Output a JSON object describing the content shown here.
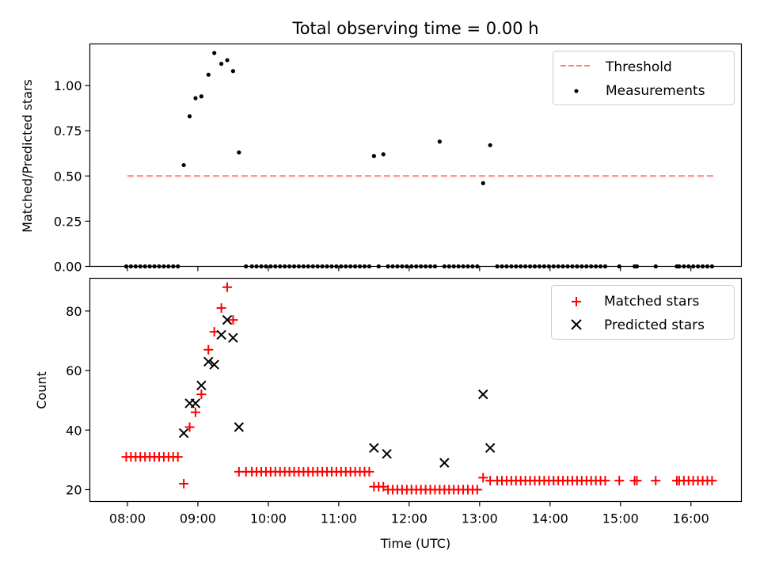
{
  "chart_data": [
    {
      "type": "scatter",
      "title": "Total observing time = 0.00 h",
      "xlabel": "",
      "ylabel": "Matched/Predicted stars",
      "ylim": [
        0,
        1.23
      ],
      "yticks": [
        "0.00",
        "0.25",
        "0.50",
        "0.75",
        "1.00"
      ],
      "grid": false,
      "legend_position": "upper right",
      "threshold": {
        "name": "Threshold",
        "value": 0.5,
        "x_start": "08:00",
        "x_end": "16:20",
        "color": "#ff7f7f",
        "style": "dashed"
      },
      "series": [
        {
          "name": "Measurements",
          "color": "#000000",
          "marker": "dot",
          "x": [
            "07:59",
            "08:03",
            "08:07",
            "08:11",
            "08:15",
            "08:19",
            "08:23",
            "08:27",
            "08:31",
            "08:35",
            "08:39",
            "08:43",
            "08:48",
            "08:53",
            "08:58",
            "09:03",
            "09:09",
            "09:14",
            "09:20",
            "09:25",
            "09:30",
            "09:35",
            "09:41",
            "09:46",
            "09:50",
            "09:54",
            "09:58",
            "10:02",
            "10:06",
            "10:10",
            "10:14",
            "10:18",
            "10:22",
            "10:26",
            "10:30",
            "10:34",
            "10:38",
            "10:42",
            "10:46",
            "10:50",
            "10:54",
            "10:58",
            "11:02",
            "11:06",
            "11:10",
            "11:14",
            "11:18",
            "11:22",
            "11:26",
            "11:30",
            "11:34",
            "11:38",
            "11:42",
            "11:46",
            "11:50",
            "11:54",
            "11:58",
            "12:02",
            "12:06",
            "12:10",
            "12:14",
            "12:18",
            "12:22",
            "12:26",
            "12:30",
            "12:34",
            "12:38",
            "12:42",
            "12:46",
            "12:50",
            "12:54",
            "12:58",
            "13:03",
            "13:09",
            "13:15",
            "13:19",
            "13:23",
            "13:27",
            "13:31",
            "13:35",
            "13:39",
            "13:43",
            "13:47",
            "13:51",
            "13:55",
            "13:59",
            "14:03",
            "14:07",
            "14:11",
            "14:15",
            "14:19",
            "14:23",
            "14:27",
            "14:31",
            "14:35",
            "14:39",
            "14:43",
            "14:47",
            "14:59",
            "15:12",
            "15:14",
            "15:30",
            "15:48",
            "15:50",
            "15:54",
            "15:58",
            "16:02",
            "16:06",
            "16:10",
            "16:14",
            "16:18"
          ],
          "y": [
            0,
            0,
            0,
            0,
            0,
            0,
            0,
            0,
            0,
            0,
            0,
            0,
            0.56,
            0.83,
            0.93,
            0.94,
            1.06,
            1.18,
            1.12,
            1.14,
            1.08,
            0.63,
            0,
            0,
            0,
            0,
            0,
            0,
            0,
            0,
            0,
            0,
            0,
            0,
            0,
            0,
            0,
            0,
            0,
            0,
            0,
            0,
            0,
            0,
            0,
            0,
            0,
            0,
            0,
            0.61,
            0,
            0.62,
            0,
            0,
            0,
            0,
            0,
            0,
            0,
            0,
            0,
            0,
            0,
            0.69,
            0,
            0,
            0,
            0,
            0,
            0,
            0,
            0,
            0.46,
            0.67,
            0,
            0,
            0,
            0,
            0,
            0,
            0,
            0,
            0,
            0,
            0,
            0,
            0,
            0,
            0,
            0,
            0,
            0,
            0,
            0,
            0,
            0,
            0,
            0,
            0,
            0,
            0,
            0,
            0,
            0,
            0,
            0,
            0,
            0,
            0,
            0,
            0
          ]
        }
      ]
    },
    {
      "type": "scatter",
      "title": "",
      "xlabel": "Time (UTC)",
      "ylabel": "Count",
      "xlim": [
        "07:28",
        "16:43"
      ],
      "ylim": [
        16,
        91
      ],
      "xticks": [
        "08:00",
        "09:00",
        "10:00",
        "11:00",
        "12:00",
        "13:00",
        "14:00",
        "15:00",
        "16:00"
      ],
      "yticks": [
        "20",
        "40",
        "60",
        "80"
      ],
      "grid": false,
      "legend_position": "upper right",
      "series": [
        {
          "name": "Matched stars",
          "color": "#ff0000",
          "marker": "plus",
          "x": [
            "07:59",
            "08:03",
            "08:07",
            "08:11",
            "08:15",
            "08:19",
            "08:23",
            "08:27",
            "08:31",
            "08:35",
            "08:39",
            "08:43",
            "08:48",
            "08:53",
            "08:58",
            "09:03",
            "09:09",
            "09:14",
            "09:20",
            "09:25",
            "09:30",
            "09:35",
            "09:41",
            "09:46",
            "09:50",
            "09:54",
            "09:58",
            "10:02",
            "10:06",
            "10:10",
            "10:14",
            "10:18",
            "10:22",
            "10:26",
            "10:30",
            "10:34",
            "10:38",
            "10:42",
            "10:46",
            "10:50",
            "10:54",
            "10:58",
            "11:02",
            "11:06",
            "11:10",
            "11:14",
            "11:18",
            "11:22",
            "11:26",
            "11:30",
            "11:34",
            "11:38",
            "11:42",
            "11:46",
            "11:50",
            "11:54",
            "11:58",
            "12:02",
            "12:06",
            "12:10",
            "12:14",
            "12:18",
            "12:22",
            "12:26",
            "12:30",
            "12:34",
            "12:38",
            "12:42",
            "12:46",
            "12:50",
            "12:54",
            "12:58",
            "13:03",
            "13:09",
            "13:15",
            "13:19",
            "13:23",
            "13:27",
            "13:31",
            "13:35",
            "13:39",
            "13:43",
            "13:47",
            "13:51",
            "13:55",
            "13:59",
            "14:03",
            "14:07",
            "14:11",
            "14:15",
            "14:19",
            "14:23",
            "14:27",
            "14:31",
            "14:35",
            "14:39",
            "14:43",
            "14:47",
            "14:59",
            "15:12",
            "15:14",
            "15:30",
            "15:48",
            "15:50",
            "15:54",
            "15:58",
            "16:02",
            "16:06",
            "16:10",
            "16:14",
            "16:18"
          ],
          "y": [
            31,
            31,
            31,
            31,
            31,
            31,
            31,
            31,
            31,
            31,
            31,
            31,
            22,
            41,
            46,
            52,
            67,
            73,
            81,
            88,
            77,
            26,
            26,
            26,
            26,
            26,
            26,
            26,
            26,
            26,
            26,
            26,
            26,
            26,
            26,
            26,
            26,
            26,
            26,
            26,
            26,
            26,
            26,
            26,
            26,
            26,
            26,
            26,
            26,
            21,
            21,
            21,
            20,
            20,
            20,
            20,
            20,
            20,
            20,
            20,
            20,
            20,
            20,
            20,
            20,
            20,
            20,
            20,
            20,
            20,
            20,
            20,
            24,
            23,
            23,
            23,
            23,
            23,
            23,
            23,
            23,
            23,
            23,
            23,
            23,
            23,
            23,
            23,
            23,
            23,
            23,
            23,
            23,
            23,
            23,
            23,
            23,
            23,
            23,
            23,
            23,
            23,
            23,
            23,
            23,
            23,
            23,
            23,
            23,
            23,
            23
          ]
        },
        {
          "name": "Predicted stars",
          "color": "#000000",
          "marker": "x",
          "x": [
            "08:48",
            "08:53",
            "08:58",
            "09:03",
            "09:09",
            "09:14",
            "09:20",
            "09:25",
            "09:30",
            "09:35",
            "11:30",
            "11:41",
            "12:30",
            "13:03",
            "13:09"
          ],
          "y": [
            39,
            49,
            49,
            55,
            63,
            62,
            72,
            77,
            71,
            41,
            34,
            32,
            29,
            52,
            34
          ]
        }
      ]
    }
  ]
}
